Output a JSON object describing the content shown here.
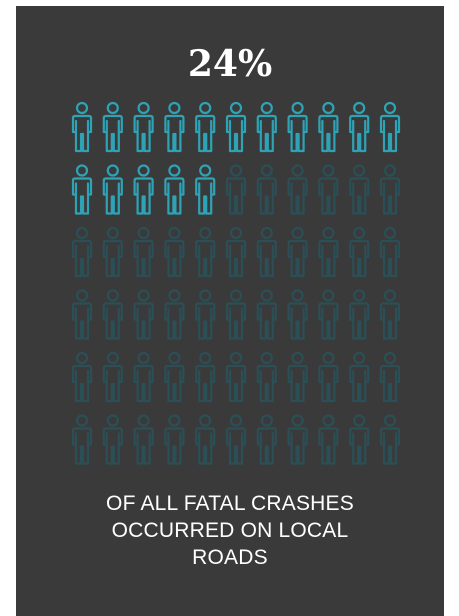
{
  "stat": {
    "value_label": "24%",
    "caption_lines": [
      "OF ALL FATAL CRASHES",
      "OCCURRED ON LOCAL",
      "ROADS"
    ]
  },
  "chart_data": {
    "type": "pictogram",
    "icon": "person-icon",
    "total_icons": 66,
    "filled_icons": 16,
    "value_percent": 24,
    "colors": {
      "background": "#3a3a3a",
      "highlight": "#2ea3b6",
      "muted": "#2b4f56"
    }
  }
}
